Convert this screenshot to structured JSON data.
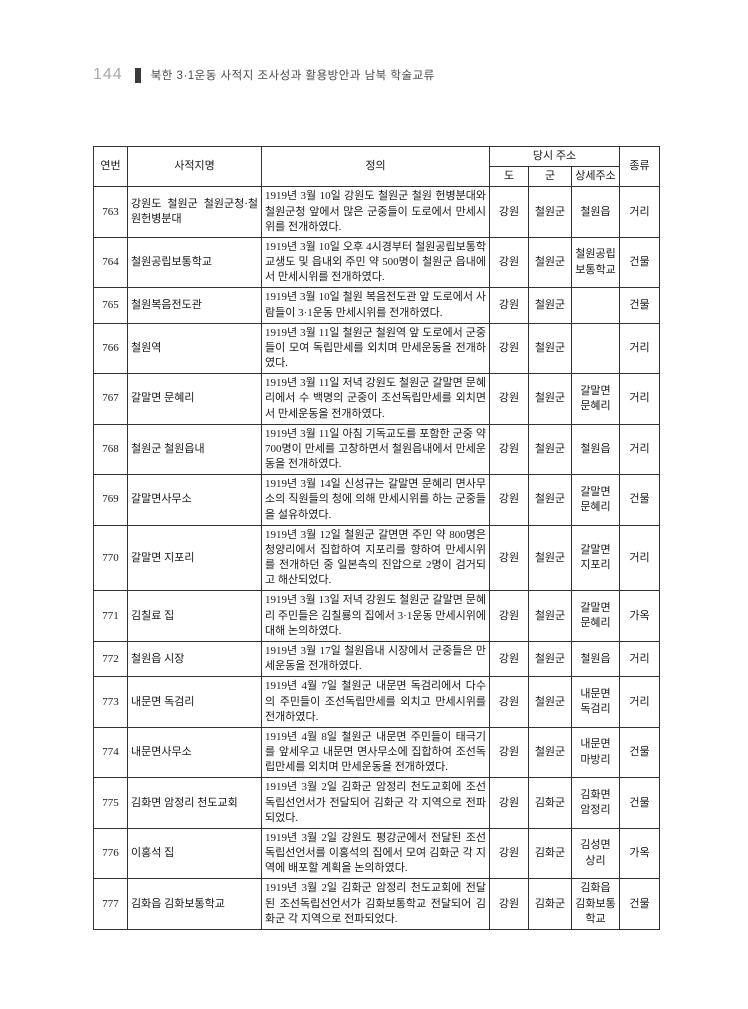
{
  "page": {
    "page_number": "144",
    "header_title": "북한 3·1운동 사적지 조사성과 활용방안과 남북 학술교류"
  },
  "table": {
    "headers": {
      "no": "연번",
      "site": "사적지명",
      "definition": "정의",
      "address_group": "당시 주소",
      "province": "도",
      "county": "군",
      "detail": "상세주소",
      "type": "종류"
    },
    "rows": [
      {
        "no": "763",
        "site": "강원도 철원군 철원군청·철원헌병분대",
        "definition": "1919년 3월 10일 강원도 철원군 철원 헌병분대와 철원군청 앞에서 많은 군중들이 도로에서 만세시위를 전개하였다.",
        "province": "강원",
        "county": "철원군",
        "detail": "철원읍",
        "type": "거리"
      },
      {
        "no": "764",
        "site": "철원공립보통학교",
        "definition": "1919년 3월 10일 오후 4시경부터 철원공립보통학교생도 및 읍내외 주민 약 500명이 철원군 읍내에서 만세시위를 전개하였다.",
        "province": "강원",
        "county": "철원군",
        "detail": "철원공립보통학교",
        "type": "건물"
      },
      {
        "no": "765",
        "site": "철원복음전도관",
        "definition": "1919년 3월 10일 철원 복음전도관 앞 도로에서 사람들이 3·1운동 만세시위를 전개하였다.",
        "province": "강원",
        "county": "철원군",
        "detail": "",
        "type": "건물"
      },
      {
        "no": "766",
        "site": "철원역",
        "definition": "1919년 3월 11일 철원군 철원역 앞 도로에서 군중들이 모여 독립만세를 외치며 만세운동을 전개하였다.",
        "province": "강원",
        "county": "철원군",
        "detail": "",
        "type": "거리"
      },
      {
        "no": "767",
        "site": "갈말면 문혜리",
        "definition": "1919년 3월 11일 저녁 강원도 철원군 갈말면 문혜리에서 수 백명의 군중이 조선독립만세를 외치면서 만세운동을 전개하였다.",
        "province": "강원",
        "county": "철원군",
        "detail": "갈말면 문혜리",
        "type": "거리"
      },
      {
        "no": "768",
        "site": "철원군 철원읍내",
        "definition": "1919년 3월 11일 아침 기독교도를 포함한 군중 약 700명이 만세를 고창하면서 철원읍내에서 만세운동을 전개하였다.",
        "province": "강원",
        "county": "철원군",
        "detail": "철원읍",
        "type": "거리"
      },
      {
        "no": "769",
        "site": "갈말면사무소",
        "definition": "1919년 3월 14일 신성규는 갈말면 문혜리 면사무소의 직원들의 청에 의해 만세시위를 하는 군중들을 설유하였다.",
        "province": "강원",
        "county": "철원군",
        "detail": "갈말면 문혜리",
        "type": "건물"
      },
      {
        "no": "770",
        "site": "갈말면 지포리",
        "definition": "1919년 3월 12일 철원군 갈면면 주민 약 800명은 청양리에서 집합하여 지포리를 향하여 만세시위를 전개하던 중 일본측의 진압으로 2명이 검거되고 해산되었다.",
        "province": "강원",
        "county": "철원군",
        "detail": "갈말면 지포리",
        "type": "거리"
      },
      {
        "no": "771",
        "site": "김칠료 집",
        "definition": "1919년 3월 13일 저녁 강원도 철원군 갈말면 문혜리 주민들은 김칠룡의 집에서 3·1운동 만세시위에 대해 논의하였다.",
        "province": "강원",
        "county": "철원군",
        "detail": "갈말면 문혜리",
        "type": "가옥"
      },
      {
        "no": "772",
        "site": "철원읍 시장",
        "definition": "1919년 3월 17일 철원읍내 시장에서 군중들은 만세운동을 전개하였다.",
        "province": "강원",
        "county": "철원군",
        "detail": "철원읍",
        "type": "거리"
      },
      {
        "no": "773",
        "site": "내문면 독검리",
        "definition": "1919년 4월 7일 철원군 내문면 독검리에서 다수의 주민들이 조선독립만세를 외치고 만세시위를 전개하였다.",
        "province": "강원",
        "county": "철원군",
        "detail": "내문면 독검리",
        "type": "거리"
      },
      {
        "no": "774",
        "site": "내문면사무소",
        "definition": "1919년 4월 8일 철원군 내문면 주민들이 태극기를 앞세우고 내문면 면사무소에 집합하여 조선독립만세를 외치며 만세운동을 전개하였다.",
        "province": "강원",
        "county": "철원군",
        "detail": "내문면 마방리",
        "type": "건물"
      },
      {
        "no": "775",
        "site": "김화면 암정리 천도교회",
        "definition": "1919년 3월 2일 김화군 암정리 천도교회에 조선독립선언서가 전달되어 김화군 각 지역으로 전파되었다.",
        "province": "강원",
        "county": "김화군",
        "detail": "김화면 암정리",
        "type": "건물"
      },
      {
        "no": "776",
        "site": "이홍석 집",
        "definition": "1919년 3월 2일 강원도 평강군에서 전달된 조선독립선언서를 이홍석의 집에서 모여 김화군 각 지역에 배포할 계획을 논의하였다.",
        "province": "강원",
        "county": "김화군",
        "detail": "김성면 상리",
        "type": "가옥"
      },
      {
        "no": "777",
        "site": "김화읍 김화보통학교",
        "definition": "1919년 3월 2일 김화군 암정리 천도교회에 전달된 조선독립선언서가 김화보통학교 전달되어 김화군 각 지역으로 전파되었다.",
        "province": "강원",
        "county": "김화군",
        "detail": "김화읍 김화보통학교",
        "type": "건물"
      }
    ]
  }
}
